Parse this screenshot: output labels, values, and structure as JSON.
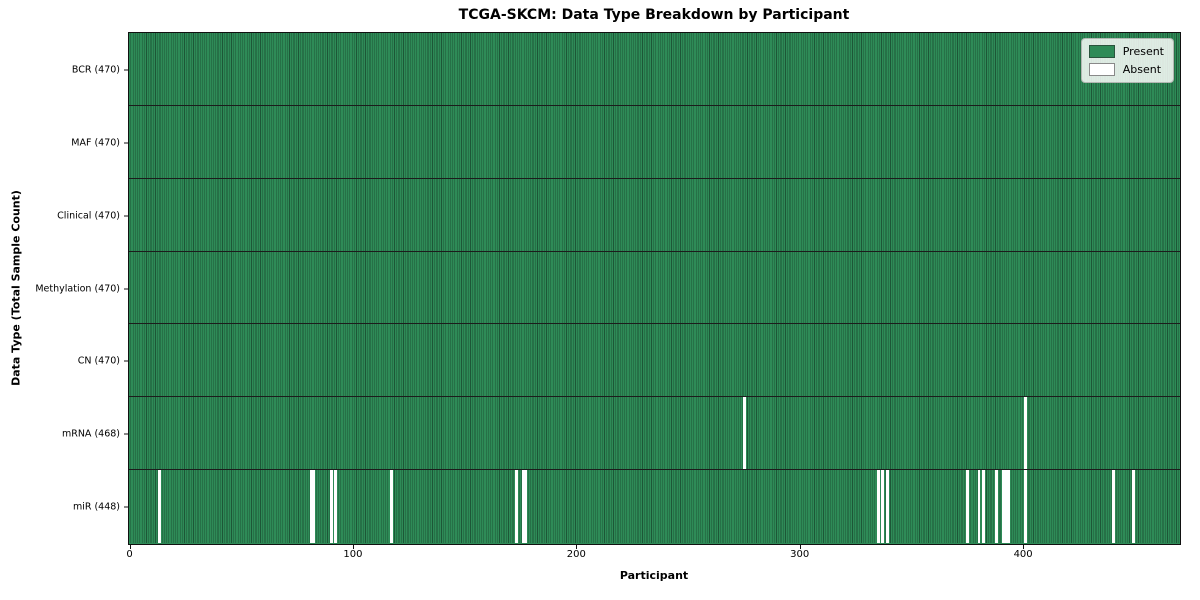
{
  "chart_data": {
    "type": "heatmap",
    "title": "TCGA-SKCM: Data Type Breakdown by Participant",
    "xlabel": "Participant",
    "ylabel": "Data Type (Total Sample Count)",
    "participants": 470,
    "x_ticks": [
      0,
      100,
      200,
      300,
      400
    ],
    "x_range": [
      0,
      470
    ],
    "grid": "row-separators",
    "legend_position": "upper-right",
    "colors": {
      "present": "#2e8b57",
      "cell_edge": "#1d5737",
      "absent": "#ffffff",
      "separator": "#1c1c1c"
    },
    "legend": [
      {
        "label": "Present",
        "color": "#2e8b57"
      },
      {
        "label": "Absent",
        "color": "#ffffff"
      }
    ],
    "rows": [
      {
        "label": "BCR (470)",
        "data_type": "BCR",
        "total": 470,
        "absent_participants": []
      },
      {
        "label": "MAF (470)",
        "data_type": "MAF",
        "total": 470,
        "absent_participants": []
      },
      {
        "label": "Clinical (470)",
        "data_type": "Clinical",
        "total": 470,
        "absent_participants": []
      },
      {
        "label": "Methylation (470)",
        "data_type": "Methylation",
        "total": 470,
        "absent_participants": []
      },
      {
        "label": "CN (470)",
        "data_type": "CN",
        "total": 470,
        "absent_participants": []
      },
      {
        "label": "mRNA (468)",
        "data_type": "mRNA",
        "total": 468,
        "absent_participants": [
          275,
          401
        ]
      },
      {
        "label": "miR (448)",
        "data_type": "miR",
        "total": 448,
        "absent_participants": [
          13,
          81,
          82,
          90,
          92,
          117,
          173,
          176,
          177,
          335,
          337,
          339,
          375,
          380,
          382,
          388,
          391,
          392,
          393,
          401,
          440,
          449
        ]
      }
    ]
  }
}
